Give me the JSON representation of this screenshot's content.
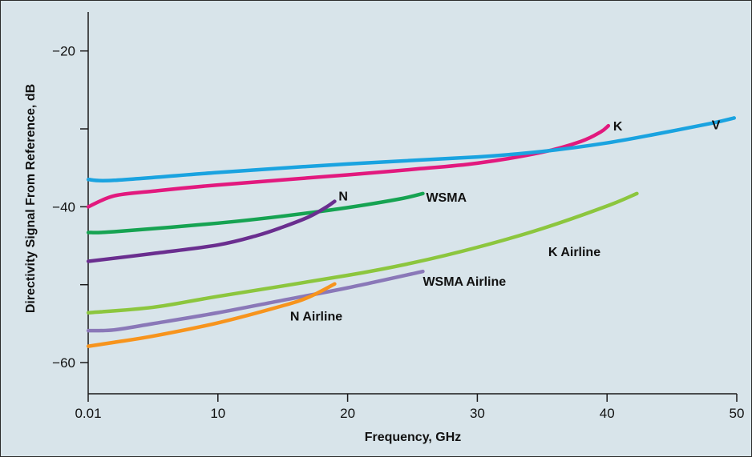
{
  "chart_data": {
    "type": "line",
    "xlabel": "Frequency, GHz",
    "ylabel": "Directivity Signal From Reference, dB",
    "xlim": [
      0,
      50
    ],
    "ylim": [
      -64,
      -15
    ],
    "x_ticks": [
      {
        "value": 0,
        "label": "0.01"
      },
      {
        "value": 10,
        "label": "10"
      },
      {
        "value": 20,
        "label": "20"
      },
      {
        "value": 30,
        "label": "30"
      },
      {
        "value": 40,
        "label": "40"
      },
      {
        "value": 50,
        "label": "50"
      }
    ],
    "y_ticks": [
      {
        "value": -20,
        "label": "−20"
      },
      {
        "value": -30,
        "label": ""
      },
      {
        "value": -40,
        "label": "−40"
      },
      {
        "value": -50,
        "label": ""
      },
      {
        "value": -60,
        "label": "−60"
      }
    ],
    "grid": false,
    "series": [
      {
        "name": "V",
        "color": "#1aa3e0",
        "points": [
          [
            0.01,
            -36.5
          ],
          [
            2,
            -36.6
          ],
          [
            10,
            -35.6
          ],
          [
            20,
            -34.5
          ],
          [
            30,
            -33.6
          ],
          [
            35,
            -32.9
          ],
          [
            40,
            -31.8
          ],
          [
            44,
            -30.6
          ],
          [
            48,
            -29.3
          ],
          [
            49.8,
            -28.6
          ]
        ]
      },
      {
        "name": "K",
        "color": "#e2197e",
        "points": [
          [
            0.01,
            -40
          ],
          [
            2,
            -38.6
          ],
          [
            5,
            -38
          ],
          [
            10,
            -37.2
          ],
          [
            20,
            -35.9
          ],
          [
            25,
            -35.2
          ],
          [
            30,
            -34.4
          ],
          [
            35,
            -33
          ],
          [
            38,
            -31.6
          ],
          [
            39.5,
            -30.4
          ],
          [
            40.1,
            -29.6
          ]
        ]
      },
      {
        "name": "WSMA",
        "color": "#16a352",
        "points": [
          [
            0.01,
            -43.3
          ],
          [
            2,
            -43.2
          ],
          [
            10,
            -42.1
          ],
          [
            15,
            -41.2
          ],
          [
            20,
            -40.1
          ],
          [
            24,
            -39
          ],
          [
            25.8,
            -38.3
          ]
        ]
      },
      {
        "name": "N",
        "color": "#6a2e8f",
        "points": [
          [
            0.01,
            -47
          ],
          [
            5,
            -46
          ],
          [
            10,
            -44.9
          ],
          [
            13,
            -43.7
          ],
          [
            15,
            -42.6
          ],
          [
            17,
            -41.3
          ],
          [
            18.3,
            -40.1
          ],
          [
            19,
            -39.3
          ]
        ]
      },
      {
        "name": "K Airline",
        "color": "#8cc63e",
        "points": [
          [
            0.01,
            -53.6
          ],
          [
            5,
            -52.9
          ],
          [
            10,
            -51.5
          ],
          [
            20,
            -48.8
          ],
          [
            25,
            -47.2
          ],
          [
            30,
            -45.2
          ],
          [
            35,
            -42.8
          ],
          [
            40,
            -39.9
          ],
          [
            42.3,
            -38.3
          ]
        ]
      },
      {
        "name": "WSMA Airline",
        "color": "#8a78b8",
        "points": [
          [
            0.01,
            -55.9
          ],
          [
            2,
            -55.8
          ],
          [
            5,
            -55
          ],
          [
            10,
            -53.6
          ],
          [
            15,
            -52
          ],
          [
            20,
            -50.4
          ],
          [
            25.8,
            -48.3
          ]
        ]
      },
      {
        "name": "N Airline",
        "color": "#f7941d",
        "points": [
          [
            0.01,
            -57.9
          ],
          [
            2,
            -57.4
          ],
          [
            5,
            -56.6
          ],
          [
            10,
            -54.9
          ],
          [
            15,
            -52.7
          ],
          [
            17,
            -51.6
          ],
          [
            19,
            -49.9
          ]
        ]
      }
    ]
  }
}
